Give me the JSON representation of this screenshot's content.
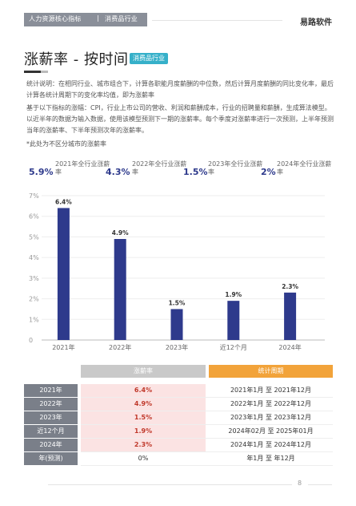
{
  "header": {
    "breadcrumb": [
      "人力资源核心指标",
      "消费品行业"
    ],
    "separator": "|",
    "brand": "易路软件"
  },
  "title": {
    "text": "涨薪率 - 按时间",
    "tag": "消费品行业"
  },
  "paragraphs": [
    "统计说明：在相同行业、城市组合下，计算各职能月度薪酬的中位数，然后计算月度薪酬的同比变化率，最后计算各统计周期下的变化率均值，即为涨薪率",
    "基于以下指标的涨幅：CPI，行业上市公司的营收、利润和薪酬成本，行业的招聘量和薪酬，生成算法模型。以近半年的数据为输入数据，使用该模型预测下一期的涨薪率。每个季度对涨薪率进行一次预测，上半年预测当年的涨薪率、下半年预测次年的涨薪率。"
  ],
  "note": "*此处为不区分城市的涨薪率",
  "stats": [
    {
      "value": "5.9%",
      "label": "2021年全行业涨薪率"
    },
    {
      "value": "4.3%",
      "label": "2022年全行业涨薪率"
    },
    {
      "value": "1.5%",
      "label": "2023年全行业涨薪率"
    },
    {
      "value": "2%",
      "label": "2024年全行业涨薪率"
    }
  ],
  "chart_data": {
    "type": "bar",
    "categories": [
      "2021年",
      "2022年",
      "2023年",
      "近12个月",
      "2024年"
    ],
    "values": [
      6.4,
      4.9,
      1.5,
      1.9,
      2.3
    ],
    "value_labels": [
      "6.4%",
      "4.9%",
      "1.5%",
      "1.9%",
      "2.3%"
    ],
    "yticks": [
      "0",
      "1%",
      "2%",
      "3%",
      "4%",
      "5%",
      "6%",
      "7%"
    ],
    "ylim": [
      0,
      7
    ],
    "grid": true,
    "bar_color": "#2e3a8c"
  },
  "table": {
    "headers": [
      "涨薪率",
      "统计周期"
    ],
    "rows": [
      {
        "year": "2021年",
        "rate": "6.4%",
        "period": "2021年1月 至 2021年12月",
        "highlight": true
      },
      {
        "year": "2022年",
        "rate": "4.9%",
        "period": "2022年1月 至 2022年12月",
        "highlight": true
      },
      {
        "year": "2023年",
        "rate": "1.5%",
        "period": "2023年1月 至 2023年12月",
        "highlight": true
      },
      {
        "year": "近12个月",
        "rate": "1.9%",
        "period": "2024年02月 至 2025年01月",
        "highlight": true
      },
      {
        "year": "2024年",
        "rate": "2.3%",
        "period": "2024年1月 至 2024年12月",
        "highlight": true
      },
      {
        "year": "年(预测)",
        "rate": "0%",
        "period": "年1月 至 年12月",
        "highlight": false
      }
    ]
  },
  "footer": {
    "page": "8"
  },
  "colors": {
    "accent": "#2e3a8c",
    "tag": "#36b0c9",
    "orange": "#f2a33a",
    "grey": "#7a7f89"
  }
}
